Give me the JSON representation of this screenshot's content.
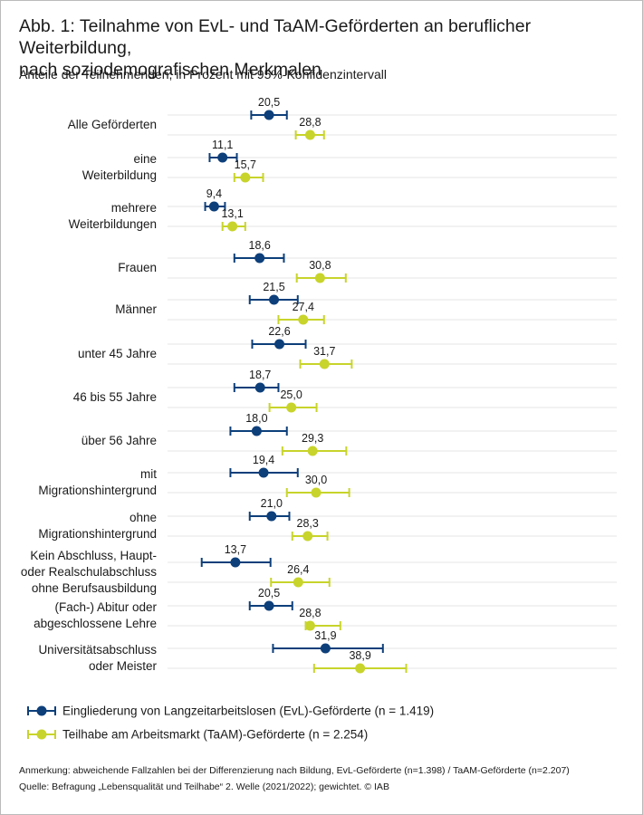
{
  "chart_data": {
    "type": "dot",
    "title": "Abb. 1: Teilnahme von EvL- und TaAM-Geförderten an beruflicher Weiterbildung,\nnach soziodemografischen Merkmalen",
    "subtitle": "Anteile der Teilnehmenden, in Prozent mit 95%-Konfidenzintervall",
    "categories": [
      "Alle Geförderten",
      "eine\nWeiterbildung",
      "mehrere\nWeiterbildungen",
      "Frauen",
      "Männer",
      "unter 45 Jahre",
      "46 bis 55 Jahre",
      "über 56 Jahre",
      "mit\nMigrationshintergrund",
      "ohne\nMigrationshintergrund",
      "Kein Abschluss, Haupt-\noder Realschulabschluss\nohne Berufsausbildung",
      "(Fach-) Abitur oder\nabgeschlossene Lehre",
      "Universitätsabschluss\noder Meister"
    ],
    "xlim": [
      0,
      90
    ],
    "series": [
      {
        "name": "Eingliederung von Langzeitarbeitslosen (EvL)-Geförderte (n = 1.419)",
        "color": "#0d3f7a",
        "values": [
          20.5,
          11.1,
          9.4,
          18.6,
          21.5,
          22.6,
          18.7,
          18.0,
          19.4,
          21.0,
          13.7,
          20.5,
          31.9
        ],
        "value_labels": [
          "20,5",
          "11,1",
          "9,4",
          "18,6",
          "21,5",
          "22,6",
          "18,7",
          "18,0",
          "19,4",
          "21,0",
          "13,7",
          "20,5",
          "31,9"
        ],
        "lower": [
          16.9,
          8.5,
          7.6,
          13.5,
          16.6,
          17.1,
          13.5,
          12.7,
          12.7,
          16.6,
          6.9,
          16.6,
          21.3
        ],
        "upper": [
          24.1,
          14.0,
          11.6,
          23.5,
          26.3,
          27.9,
          22.4,
          24.1,
          26.3,
          24.6,
          20.8,
          25.2,
          43.5
        ]
      },
      {
        "name": "Teilhabe am Arbeitsmarkt (TaAM)-Geförderte (n = 2.254)",
        "color": "#c8d42b",
        "values": [
          28.8,
          15.7,
          13.1,
          30.8,
          27.4,
          31.7,
          25.0,
          29.3,
          30.0,
          28.3,
          26.4,
          28.8,
          38.9
        ],
        "value_labels": [
          "28,8",
          "15,7",
          "13,1",
          "30,8",
          "27,4",
          "31,7",
          "25,0",
          "29,3",
          "30,0",
          "28,3",
          "26,4",
          "28,8",
          "38,9"
        ],
        "lower": [
          25.9,
          13.5,
          11.1,
          26.1,
          22.4,
          26.8,
          20.6,
          23.2,
          24.1,
          25.2,
          20.9,
          27.9,
          29.6
        ],
        "upper": [
          31.6,
          19.3,
          15.7,
          36.0,
          31.6,
          37.2,
          30.1,
          36.1,
          36.7,
          32.3,
          32.7,
          34.9,
          48.2
        ]
      }
    ],
    "note": "Anmerkung: abweichende Fallzahlen bei der Differenzierung nach Bildung, EvL-Geförderte (n=1.398) / TaAM-Geförderte (n=2.207)",
    "source": "Quelle: Befragung „Lebensqualität und Teilhabe“ 2. Welle (2021/2022); gewichtet. © IAB"
  }
}
